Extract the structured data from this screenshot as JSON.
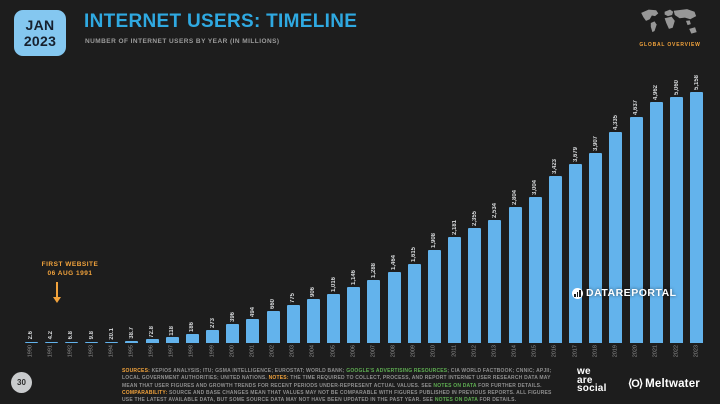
{
  "colors": {
    "background": "#1d1d1d",
    "accent_blue": "#2fa9e1",
    "badge_bg": "#84c7f0",
    "bar": "#63b3ec",
    "orange": "#f2a33c",
    "green": "#5fae52",
    "gray_text": "#8f8f8f"
  },
  "header": {
    "badge_line1": "JAN",
    "badge_line2": "2023",
    "title": "INTERNET USERS: TIMELINE",
    "subtitle": "NUMBER OF INTERNET USERS BY YEAR (IN MILLIONS)",
    "overview_label": "GLOBAL OVERVIEW"
  },
  "annotation": {
    "line1": "FIRST WEBSITE",
    "line2": "06 AUG 1991"
  },
  "watermark": {
    "text": "DATAREPORTAL"
  },
  "chart_data": {
    "type": "bar",
    "title": "INTERNET USERS: TIMELINE",
    "subtitle": "NUMBER OF INTERNET USERS BY YEAR (IN MILLIONS)",
    "categories": [
      "1990",
      "1991",
      "1992",
      "1993",
      "1994",
      "1995",
      "1996",
      "1997",
      "1998",
      "1999",
      "2000",
      "2001",
      "2002",
      "2003",
      "2004",
      "2005",
      "2006",
      "2007",
      "2008",
      "2009",
      "2010",
      "2011",
      "2012",
      "2013",
      "2014",
      "2015",
      "2016",
      "2017",
      "2018",
      "2019",
      "2020",
      "2021",
      "2022",
      "2023"
    ],
    "values": [
      2.6,
      4.2,
      6.8,
      9.8,
      20.1,
      38.7,
      72.8,
      118,
      186,
      273,
      396,
      494,
      660,
      775,
      906,
      1016,
      1146,
      1288,
      1464,
      1615,
      1908,
      2181,
      2355,
      2534,
      2804,
      3004,
      3423,
      3679,
      3907,
      4335,
      4637,
      4962,
      5060,
      5158
    ],
    "value_labels": [
      "2.6",
      "4.2",
      "6.8",
      "9.8",
      "20.1",
      "38.7",
      "72.8",
      "118",
      "186",
      "273",
      "396",
      "494",
      "660",
      "775",
      "906",
      "1,016",
      "1,146",
      "1,288",
      "1,464",
      "1,615",
      "1,908",
      "2,181",
      "2,355",
      "2,534",
      "2,804",
      "3,004",
      "3,423",
      "3,679",
      "3,907",
      "4,335",
      "4,637",
      "4,962",
      "5,060",
      "5,158"
    ],
    "xlabel": "",
    "ylabel": "",
    "ymax": 5158,
    "ylim": [
      0,
      5200
    ],
    "grid": false,
    "legend": false,
    "bar_color": "#63b3ec",
    "annotations": [
      "FIRST WEBSITE 06 AUG 1991 (arrow pointing to 1991 bar)"
    ]
  },
  "footer": {
    "page_number": "30",
    "notes_segments": [
      {
        "style": "orange",
        "text": "SOURCES: "
      },
      {
        "style": "gray",
        "text": "KEPIOS ANALYSIS; ITU; GSMA INTELLIGENCE; EUROSTAT; WORLD BANK; "
      },
      {
        "style": "green",
        "text": "GOOGLE’S ADVERTISING RESOURCES"
      },
      {
        "style": "gray",
        "text": "; CIA WORLD FACTBOOK; CNNIC; APJII; LOCAL GOVERNMENT AUTHORITIES; UNITED NATIONS. "
      },
      {
        "style": "orange",
        "text": "NOTES: "
      },
      {
        "style": "gray",
        "text": "THE TIME REQUIRED TO COLLECT, PROCESS, AND REPORT INTERNET USER RESEARCH DATA MAY MEAN THAT USER FIGURES AND GROWTH TRENDS FOR RECENT PERIODS UNDER-REPRESENT ACTUAL VALUES. SEE "
      },
      {
        "style": "green",
        "text": "NOTES ON DATA"
      },
      {
        "style": "gray",
        "text": " FOR FURTHER DETAILS. "
      },
      {
        "style": "orange",
        "text": "COMPARABILITY: "
      },
      {
        "style": "gray",
        "text": "SOURCE AND BASE CHANGES MEAN THAT VALUES MAY NOT BE COMPARABLE WITH FIGURES PUBLISHED IN PREVIOUS REPORTS. ALL FIGURES USE THE LATEST AVAILABLE DATA, BUT SOME SOURCE DATA MAY NOT HAVE BEEN UPDATED IN THE PAST YEAR. SEE "
      },
      {
        "style": "green",
        "text": "NOTES ON DATA"
      },
      {
        "style": "gray",
        "text": " FOR DETAILS."
      }
    ],
    "we_are_social": [
      "we",
      "are",
      "social"
    ],
    "meltwater_mark": "⟨O⟩",
    "meltwater": "Meltwater"
  }
}
